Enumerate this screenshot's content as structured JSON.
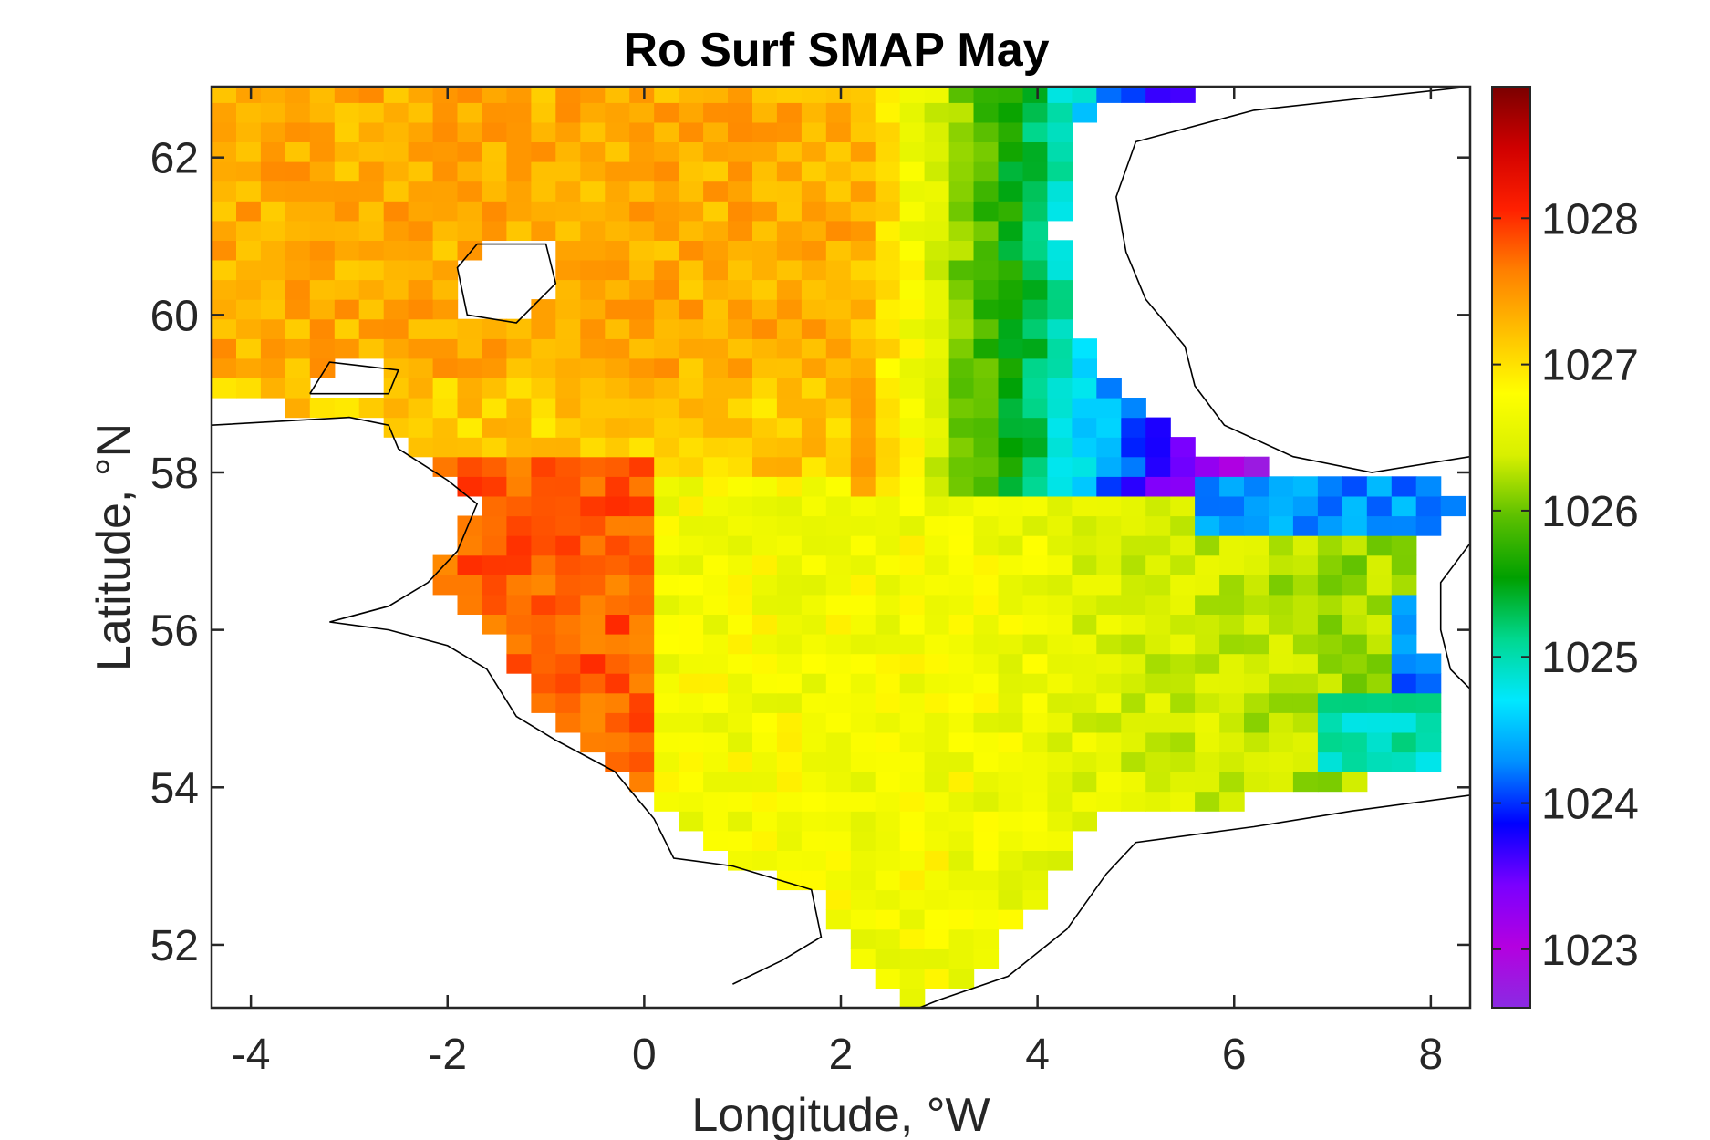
{
  "chart_data": {
    "type": "heatmap",
    "title": "Ro Surf SMAP May",
    "xlabel": "Longitude, °W",
    "ylabel": "Latitude, °N",
    "xlim": [
      -4.4,
      8.4
    ],
    "ylim": [
      51.2,
      62.9
    ],
    "x_ticks": [
      -4,
      -2,
      0,
      2,
      4,
      6,
      8
    ],
    "x_tick_labels": [
      "-4",
      "-2",
      "0",
      "2",
      "4",
      "6",
      "8"
    ],
    "y_ticks": [
      52,
      54,
      56,
      58,
      60,
      62
    ],
    "y_tick_labels": [
      "52",
      "54",
      "56",
      "58",
      "60",
      "62"
    ],
    "colorbar": {
      "range": [
        1022.6,
        1028.9
      ],
      "ticks": [
        1023,
        1024,
        1025,
        1026,
        1027,
        1028
      ],
      "tick_labels": [
        "1023",
        "1024",
        "1025",
        "1026",
        "1027",
        "1028"
      ],
      "colormap": [
        "#8a2be2",
        "#b400e0",
        "#7a00ff",
        "#0000ff",
        "#0090ff",
        "#00e8ff",
        "#00d890",
        "#00a000",
        "#5cc000",
        "#d8f000",
        "#ffff00",
        "#ffc000",
        "#ff8000",
        "#ff2000",
        "#d00000",
        "#7a0000"
      ]
    },
    "grid": false,
    "cell_size_deg": {
      "lon": 0.25,
      "lat": 0.25
    },
    "coastline_color": "#000000",
    "field_description": "Gridded surface density (Ro) over the North Sea for May, highest (1027–1028.8) in the north-west and along the UK coast, lowest (1023–1025) along the Norwegian trench and the Skagerrak."
  }
}
